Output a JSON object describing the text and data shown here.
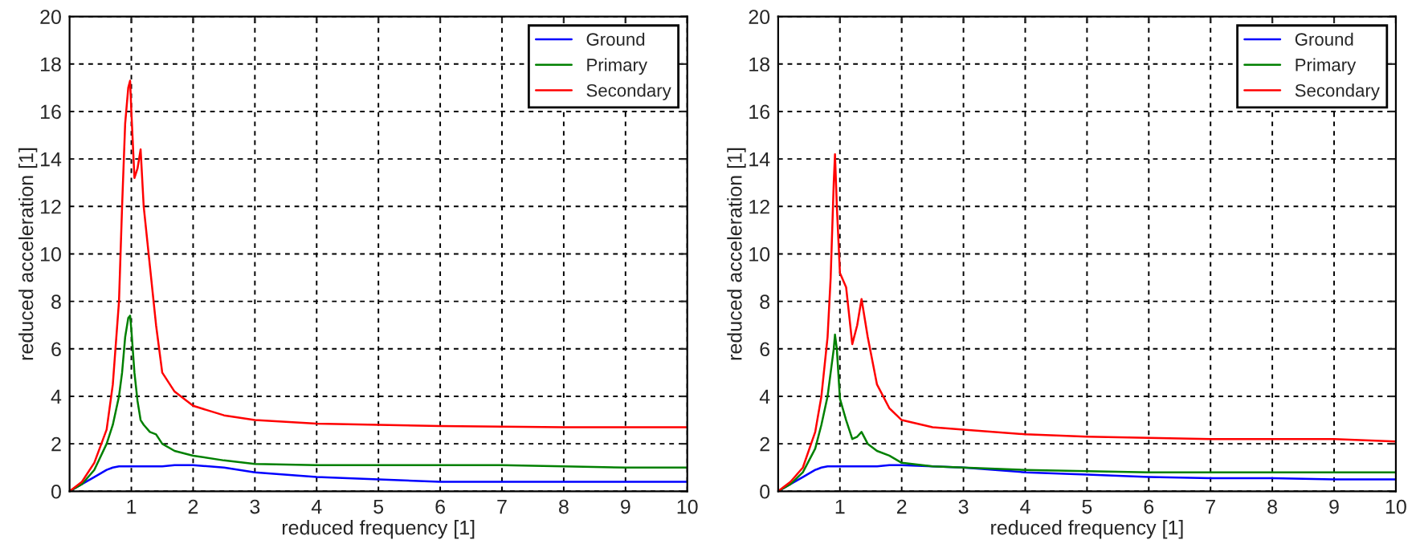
{
  "chart_data": [
    {
      "type": "line",
      "xlabel": "reduced frequency [1]",
      "ylabel": "reduced acceleration [1]",
      "xlim": [
        0,
        10
      ],
      "ylim": [
        0,
        20
      ],
      "xticks": [
        1,
        2,
        3,
        4,
        5,
        6,
        7,
        8,
        9,
        10
      ],
      "yticks": [
        0,
        2,
        4,
        6,
        8,
        10,
        12,
        14,
        16,
        18,
        20
      ],
      "grid": true,
      "legend": "top right",
      "x": [
        0,
        0.2,
        0.4,
        0.6,
        0.7,
        0.8,
        0.85,
        0.9,
        0.95,
        0.98,
        1.0,
        1.05,
        1.1,
        1.15,
        1.2,
        1.3,
        1.4,
        1.5,
        1.7,
        2.0,
        2.5,
        3,
        4,
        5,
        6,
        7,
        8,
        9,
        10
      ],
      "series": [
        {
          "name": "Ground",
          "color": "#0000ff",
          "values": [
            0,
            0.3,
            0.6,
            0.9,
            1.0,
            1.05,
            1.05,
            1.05,
            1.05,
            1.05,
            1.05,
            1.05,
            1.05,
            1.05,
            1.05,
            1.05,
            1.05,
            1.05,
            1.1,
            1.1,
            1.0,
            0.8,
            0.6,
            0.5,
            0.4,
            0.4,
            0.4,
            0.4,
            0.4
          ]
        },
        {
          "name": "Primary",
          "color": "#008000",
          "values": [
            0,
            0.3,
            0.9,
            2,
            2.8,
            4,
            5,
            6.5,
            7.3,
            7.4,
            6.8,
            5,
            3.8,
            3.0,
            2.8,
            2.5,
            2.4,
            2.0,
            1.7,
            1.5,
            1.3,
            1.15,
            1.1,
            1.1,
            1.1,
            1.1,
            1.05,
            1.0,
            1.0
          ]
        },
        {
          "name": "Secondary",
          "color": "#ff0000",
          "values": [
            0,
            0.4,
            1.2,
            2.6,
            4.5,
            8,
            12,
            15.5,
            17,
            17.3,
            16,
            13.2,
            13.6,
            14.4,
            12,
            9.5,
            7,
            5,
            4.2,
            3.6,
            3.2,
            3.0,
            2.85,
            2.8,
            2.75,
            2.72,
            2.7,
            2.7,
            2.7
          ]
        }
      ]
    },
    {
      "type": "line",
      "xlabel": "reduced frequency [1]",
      "ylabel": "reduced acceleration [1]",
      "xlim": [
        0,
        10
      ],
      "ylim": [
        0,
        20
      ],
      "xticks": [
        1,
        2,
        3,
        4,
        5,
        6,
        7,
        8,
        9,
        10
      ],
      "yticks": [
        0,
        2,
        4,
        6,
        8,
        10,
        12,
        14,
        16,
        18,
        20
      ],
      "grid": true,
      "legend": "top right",
      "x": [
        0,
        0.2,
        0.4,
        0.6,
        0.7,
        0.8,
        0.85,
        0.9,
        0.92,
        0.95,
        1.0,
        1.1,
        1.2,
        1.28,
        1.35,
        1.45,
        1.6,
        1.8,
        2.0,
        2.5,
        3,
        4,
        5,
        6,
        7,
        8,
        9,
        10
      ],
      "series": [
        {
          "name": "Ground",
          "color": "#0000ff",
          "values": [
            0,
            0.3,
            0.6,
            0.9,
            1.0,
            1.05,
            1.05,
            1.05,
            1.05,
            1.05,
            1.05,
            1.05,
            1.05,
            1.05,
            1.05,
            1.05,
            1.05,
            1.1,
            1.1,
            1.05,
            1.0,
            0.8,
            0.7,
            0.6,
            0.55,
            0.55,
            0.5,
            0.5
          ]
        },
        {
          "name": "Primary",
          "color": "#008000",
          "values": [
            0,
            0.3,
            0.8,
            1.8,
            2.8,
            4.0,
            5.0,
            6.0,
            6.6,
            6.0,
            3.9,
            3.0,
            2.2,
            2.3,
            2.5,
            2.0,
            1.7,
            1.5,
            1.2,
            1.05,
            1.0,
            0.9,
            0.85,
            0.8,
            0.8,
            0.8,
            0.8,
            0.8
          ]
        },
        {
          "name": "Secondary",
          "color": "#ff0000",
          "values": [
            0,
            0.4,
            1.0,
            2.5,
            4,
            6.5,
            9,
            13,
            14.2,
            12,
            9.2,
            8.6,
            6.2,
            7,
            8.1,
            6.5,
            4.5,
            3.5,
            3.0,
            2.7,
            2.6,
            2.4,
            2.3,
            2.25,
            2.2,
            2.2,
            2.2,
            2.1
          ]
        }
      ]
    }
  ]
}
